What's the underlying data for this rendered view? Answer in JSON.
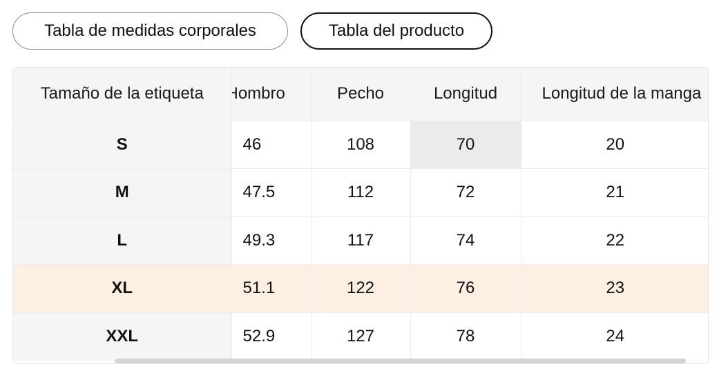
{
  "tabs": {
    "body_measurements": "Tabla de medidas corporales",
    "product_table": "Tabla del producto",
    "active": "product_table"
  },
  "size_table": {
    "headers": [
      "Tamaño de la etiqueta",
      "Hombro",
      "Pecho",
      "Longitud",
      "Longitud de la manga"
    ],
    "rows": [
      {
        "size": "S",
        "shoulder": "46",
        "chest": "108",
        "length": "70",
        "sleeve": "20"
      },
      {
        "size": "M",
        "shoulder": "47.5",
        "chest": "112",
        "length": "72",
        "sleeve": "21"
      },
      {
        "size": "L",
        "shoulder": "49.3",
        "chest": "117",
        "length": "74",
        "sleeve": "22"
      },
      {
        "size": "XL",
        "shoulder": "51.1",
        "chest": "122",
        "length": "76",
        "sleeve": "23"
      },
      {
        "size": "XXL",
        "shoulder": "52.9",
        "chest": "127",
        "length": "78",
        "sleeve": "24"
      }
    ],
    "highlighted_row": "XL",
    "highlight_color": "#fdefe2",
    "selected_cell": {
      "row": "S",
      "column": "Longitud"
    }
  }
}
